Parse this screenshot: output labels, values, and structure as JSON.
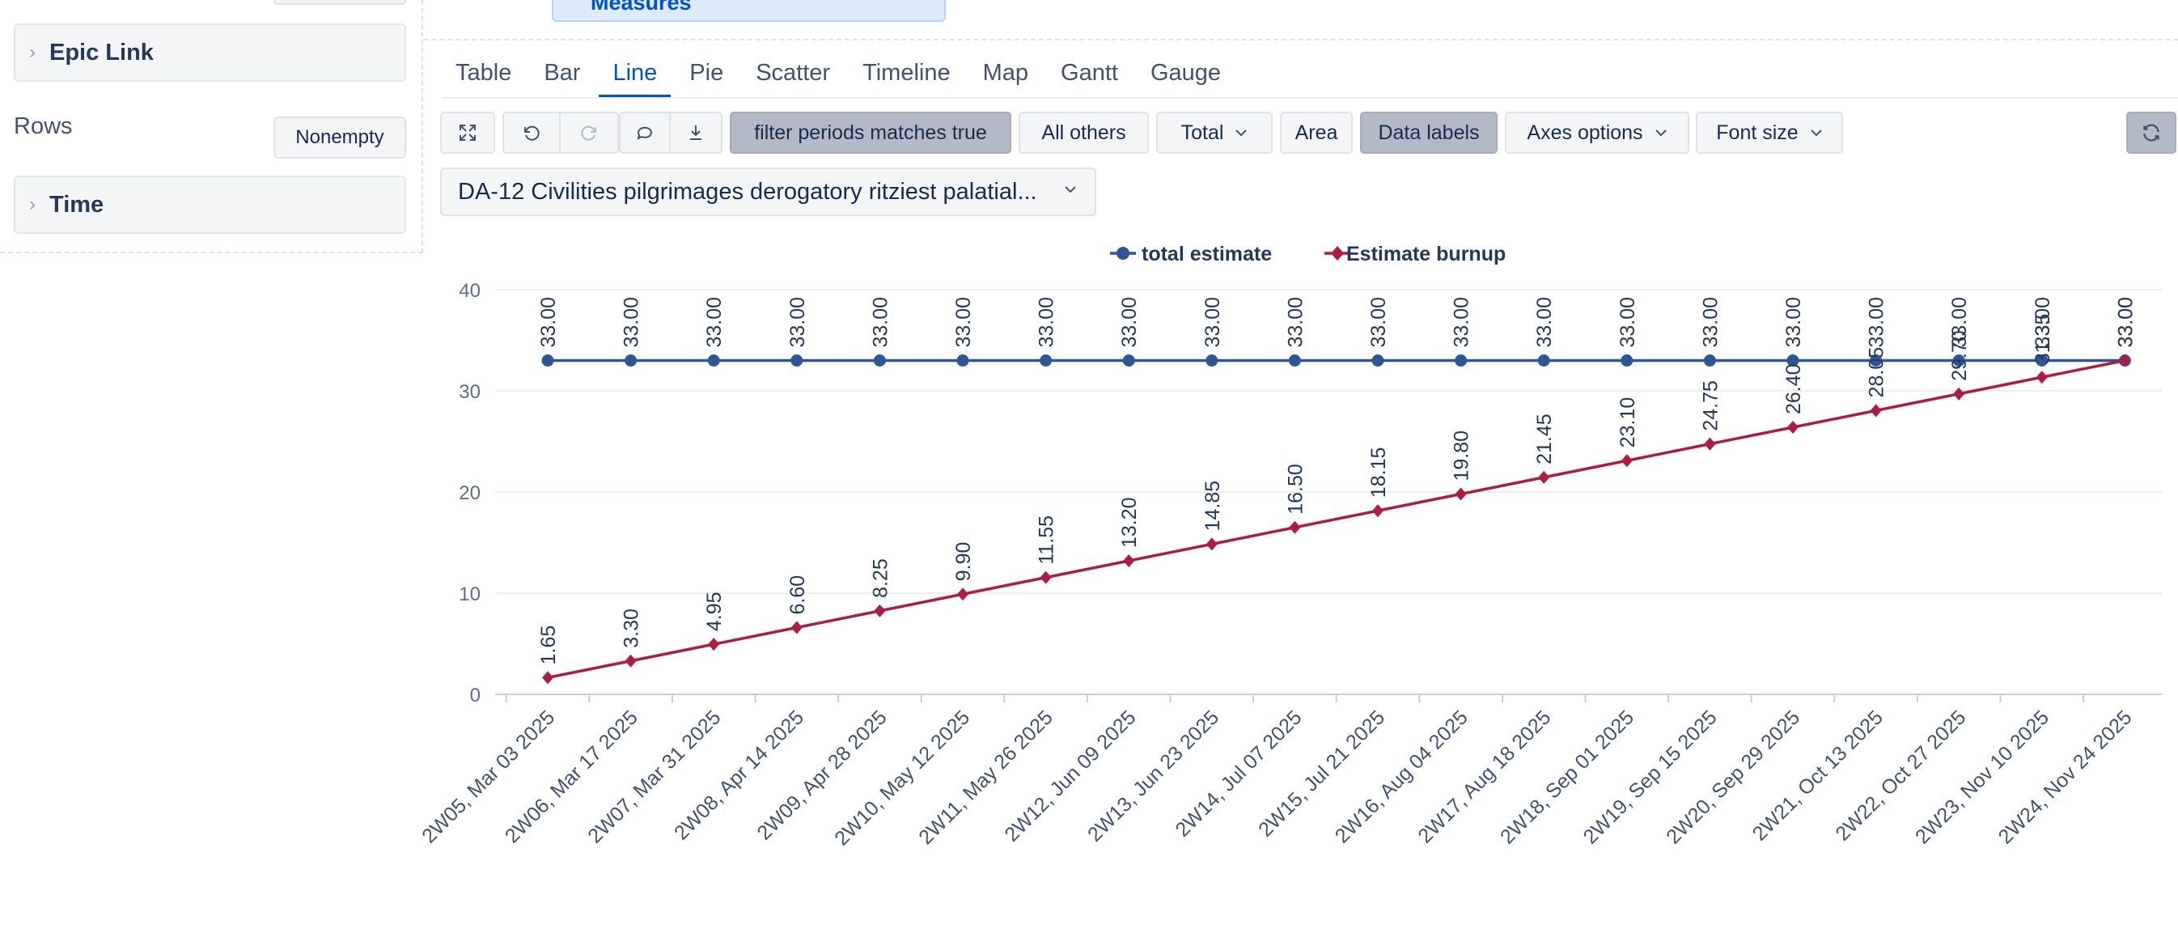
{
  "left_panel": {
    "epic_link_label": "Epic Link",
    "rows_label": "Rows",
    "nonempty_label": "Nonempty",
    "time_label": "Time"
  },
  "measures_label": "Measures",
  "tabs": [
    "Table",
    "Bar",
    "Line",
    "Pie",
    "Scatter",
    "Timeline",
    "Map",
    "Gantt",
    "Gauge"
  ],
  "active_tab": "Line",
  "toolbar": {
    "filter_label": "filter periods matches true",
    "all_others_label": "All others",
    "total_label": "Total",
    "area_label": "Area",
    "data_labels_label": "Data labels",
    "axes_options_label": "Axes options",
    "font_size_label": "Font size"
  },
  "selector_value": "DA-12 Civilities pilgrimages derogatory ritziest palatial...",
  "colors": {
    "total_estimate": "#2c5697",
    "estimate_burnup": "#b01c3f",
    "accent": "#0052cc"
  },
  "icons": [
    "expand-icon",
    "undo-icon",
    "redo-icon",
    "comment-icon",
    "download-icon",
    "refresh-icon",
    "chevron-down-icon",
    "chevron-right-icon"
  ],
  "chart_data": {
    "type": "line",
    "categories": [
      "2W05, Mar 03 2025",
      "2W06, Mar 17 2025",
      "2W07, Mar 31 2025",
      "2W08, Apr 14 2025",
      "2W09, Apr 28 2025",
      "2W10, May 12 2025",
      "2W11, May 26 2025",
      "2W12, Jun 09 2025",
      "2W13, Jun 23 2025",
      "2W14, Jul 07 2025",
      "2W15, Jul 21 2025",
      "2W16, Aug 04 2025",
      "2W17, Aug 18 2025",
      "2W18, Sep 01 2025",
      "2W19, Sep 15 2025",
      "2W20, Sep 29 2025",
      "2W21, Oct 13 2025",
      "2W22, Oct 27 2025",
      "2W23, Nov 10 2025",
      "2W24, Nov 24 2025"
    ],
    "series": [
      {
        "name": "total estimate",
        "marker": "circle",
        "values": [
          33,
          33,
          33,
          33,
          33,
          33,
          33,
          33,
          33,
          33,
          33,
          33,
          33,
          33,
          33,
          33,
          33,
          33,
          33,
          33
        ],
        "labels": [
          "33.00",
          "33.00",
          "33.00",
          "33.00",
          "33.00",
          "33.00",
          "33.00",
          "33.00",
          "33.00",
          "33.00",
          "33.00",
          "33.00",
          "33.00",
          "33.00",
          "33.00",
          "33.00",
          "33.00",
          "33.00",
          "33.00",
          "33.00"
        ]
      },
      {
        "name": "Estimate burnup",
        "marker": "diamond",
        "values": [
          1.65,
          3.3,
          4.95,
          6.6,
          8.25,
          9.9,
          11.55,
          13.2,
          14.85,
          16.5,
          18.15,
          19.8,
          21.45,
          23.1,
          24.75,
          26.4,
          28.05,
          29.7,
          31.35,
          33.0
        ],
        "labels": [
          "1.65",
          "3.30",
          "4.95",
          "6.60",
          "8.25",
          "9.90",
          "11.55",
          "13.20",
          "14.85",
          "16.50",
          "18.15",
          "19.80",
          "21.45",
          "23.10",
          "24.75",
          "26.40",
          "28.05",
          "29.70",
          "31.35",
          "33.00"
        ]
      }
    ],
    "ylim": [
      0,
      40
    ],
    "yticks": [
      "0",
      "10",
      "20",
      "30",
      "40"
    ],
    "grid": true,
    "legend_position": "top-center",
    "data_labels": true
  }
}
